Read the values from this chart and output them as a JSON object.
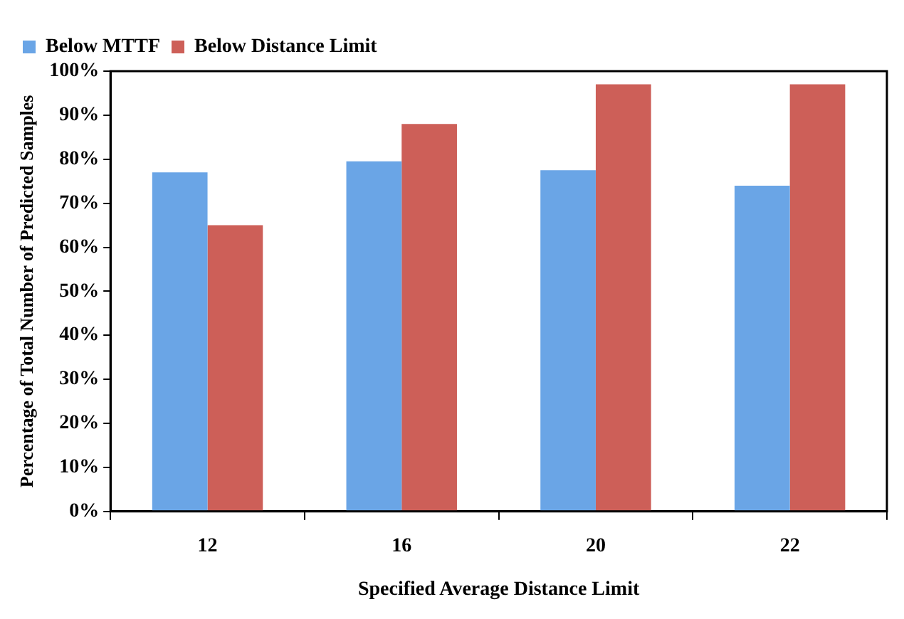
{
  "chart_data": {
    "type": "bar",
    "xlabel": "Specified Average Distance Limit",
    "ylabel": "Percentage of Total Number of Predicted Samples",
    "categories": [
      "12",
      "16",
      "20",
      "22"
    ],
    "series": [
      {
        "name": "Below MTTF",
        "color": "#6aa5e6",
        "values": [
          77,
          79.5,
          77.5,
          74
        ]
      },
      {
        "name": "Below Distance Limit",
        "color": "#cd5f58",
        "values": [
          65,
          88,
          97,
          97
        ]
      }
    ],
    "ylim": [
      0,
      100
    ],
    "yticks": [
      {
        "value": 0,
        "label": "0%"
      },
      {
        "value": 10,
        "label": "10%"
      },
      {
        "value": 20,
        "label": "20%"
      },
      {
        "value": 30,
        "label": "30%"
      },
      {
        "value": 40,
        "label": "40%"
      },
      {
        "value": 50,
        "label": "50%"
      },
      {
        "value": 60,
        "label": "60%"
      },
      {
        "value": 70,
        "label": "70%"
      },
      {
        "value": 80,
        "label": "80%"
      },
      {
        "value": 90,
        "label": "90%"
      },
      {
        "value": 100,
        "label": "100%"
      }
    ],
    "grid": false,
    "legend": "top left"
  }
}
